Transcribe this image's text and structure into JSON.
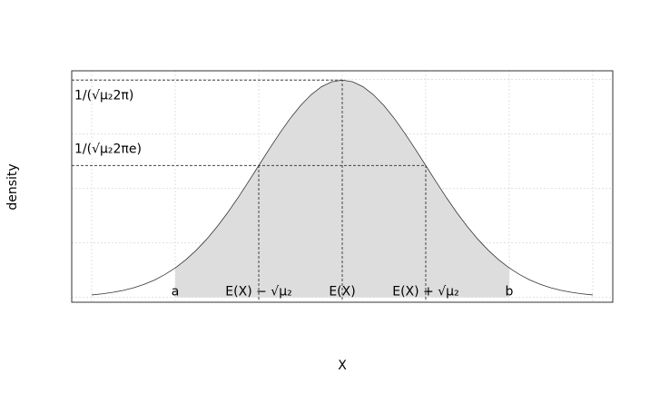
{
  "chart_data": {
    "type": "area",
    "x_label": "X",
    "y_label": "density",
    "x": [
      -3,
      -2.875,
      -2.75,
      -2.625,
      -2.5,
      -2.375,
      -2.25,
      -2.125,
      -2,
      -1.875,
      -1.75,
      -1.625,
      -1.5,
      -1.375,
      -1.25,
      -1.125,
      -1,
      -0.875,
      -0.75,
      -0.625,
      -0.5,
      -0.375,
      -0.25,
      -0.125,
      0,
      0.125,
      0.25,
      0.375,
      0.5,
      0.625,
      0.75,
      0.875,
      1,
      1.125,
      1.25,
      1.375,
      1.5,
      1.625,
      1.75,
      1.875,
      2,
      2.125,
      2.25,
      2.375,
      2.5,
      2.625,
      2.75,
      2.875,
      3
    ],
    "values": [
      0.0044,
      0.0064,
      0.0091,
      0.0127,
      0.0175,
      0.0238,
      0.0317,
      0.0417,
      0.054,
      0.0688,
      0.0863,
      0.1065,
      0.1295,
      0.155,
      0.1826,
      0.2119,
      0.242,
      0.2721,
      0.3011,
      0.3282,
      0.3521,
      0.3718,
      0.3867,
      0.3958,
      0.3989,
      0.3958,
      0.3867,
      0.3718,
      0.3521,
      0.3282,
      0.3011,
      0.2721,
      0.242,
      0.2119,
      0.1826,
      0.155,
      0.1295,
      0.1065,
      0.0863,
      0.0688,
      0.054,
      0.0417,
      0.0317,
      0.0238,
      0.0175,
      0.0127,
      0.0091,
      0.0064,
      0.0044
    ],
    "color": "#333333",
    "shade_color": "#dddddd",
    "shade_from": -2,
    "shade_to": 2,
    "xlim": [
      -3.24,
      3.24
    ],
    "ylim": [
      -0.009,
      0.416
    ],
    "xgrid": [
      -3,
      -2,
      -1,
      0,
      1,
      2,
      3
    ],
    "ygrid": [
      0,
      0.1,
      0.2,
      0.3,
      0.4
    ],
    "grid": true,
    "hlines": [
      {
        "y": 0.3989,
        "to_x": 0,
        "label": "1/(√μ₂2π)",
        "label_position": "below"
      },
      {
        "y": 0.242,
        "to_x": 1,
        "label": "1/(√μ₂2πe)",
        "label_position": "above"
      }
    ],
    "vlines": [
      {
        "x": -1,
        "y": 0.242
      },
      {
        "x": 0,
        "y": 0.3989
      },
      {
        "x": 1,
        "y": 0.242
      }
    ],
    "annotations": [
      {
        "text": "a",
        "x": -2
      },
      {
        "text": "E(X) − √μ₂",
        "x": -1
      },
      {
        "text": "E(X)",
        "x": 0
      },
      {
        "text": "E(X) + √μ₂",
        "x": 1
      },
      {
        "text": "b",
        "x": 2
      }
    ]
  }
}
